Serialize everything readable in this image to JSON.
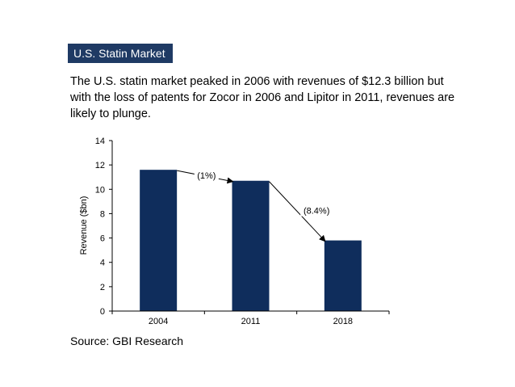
{
  "header": {
    "title": "U.S. Statin Market"
  },
  "description": "The U.S. statin market peaked in 2006 with revenues of $12.3 billion but with the loss of patents for Zocor in 2006 and Lipitor in 2011, revenues are likely to plunge.",
  "source": "Source: GBI Research",
  "colors": {
    "bar": "#0f2d5c",
    "title_bg": "#1f3a64"
  },
  "chart_data": {
    "type": "bar",
    "title": "",
    "xlabel": "",
    "ylabel": "Revenue ($bn)",
    "categories": [
      "2004",
      "2011",
      "2018"
    ],
    "values": [
      11.6,
      10.7,
      5.8
    ],
    "ylim": [
      0,
      14
    ],
    "yticks": [
      0,
      2,
      4,
      6,
      8,
      10,
      12,
      14
    ],
    "grid": false,
    "legend": "none",
    "annotations": [
      {
        "from": "2004",
        "to": "2011",
        "label": "(1%)"
      },
      {
        "from": "2011",
        "to": "2018",
        "label": "(8.4%)"
      }
    ]
  }
}
